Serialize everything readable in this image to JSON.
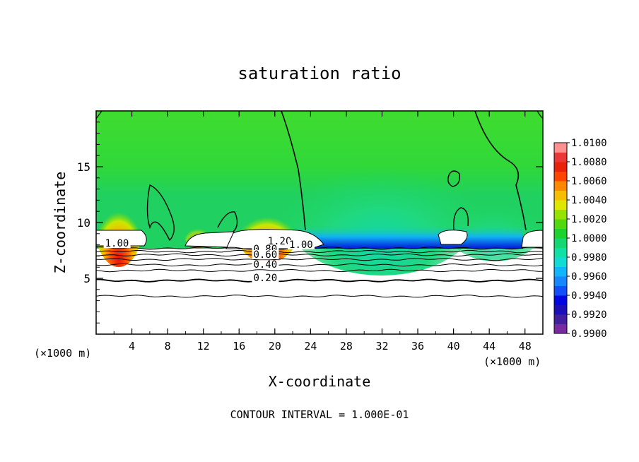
{
  "chart_data": {
    "type": "heatmap",
    "title": "saturation ratio",
    "xlabel": "X-coordinate",
    "ylabel": "Z-coordinate",
    "x_unit_left": "(×1000 m)",
    "x_unit_right": "(×1000 m)",
    "footer": "CONTOUR INTERVAL = 1.000E-01",
    "xlim": [
      0,
      50
    ],
    "ylim": [
      0,
      20
    ],
    "x_ticks": [
      4,
      8,
      12,
      16,
      20,
      24,
      28,
      32,
      36,
      40,
      44,
      48
    ],
    "y_ticks": [
      5,
      10,
      15
    ],
    "colorbar": {
      "range": [
        0.99,
        1.01
      ],
      "labels": [
        "1.0100",
        "1.0080",
        "1.0060",
        "1.0040",
        "1.0020",
        "1.0000",
        "0.9980",
        "0.9960",
        "0.9940",
        "0.9920",
        "0.9900"
      ]
    },
    "contour_labels": [
      {
        "text": "1.00",
        "x": 1.0,
        "z": 7.9
      },
      {
        "text": "1.20",
        "x": 19.2,
        "z": 8.1
      },
      {
        "text": "1.00",
        "x": 21.6,
        "z": 7.8
      },
      {
        "text": "0.80",
        "x": 17.6,
        "z": 7.4
      },
      {
        "text": "0.60",
        "x": 17.6,
        "z": 6.9
      },
      {
        "text": "0.40",
        "x": 17.6,
        "z": 6.0
      },
      {
        "text": "0.20",
        "x": 17.6,
        "z": 4.8
      }
    ],
    "contour_levels_z": [
      3.4,
      4.8,
      5.7,
      6.2,
      6.7,
      7.1,
      7.4,
      7.7
    ]
  },
  "colors": {
    "colorbar_stops": [
      "#7a2aa0",
      "#2a1aa0",
      "#0000e0",
      "#1a6aff",
      "#10b0ff",
      "#10e8c8",
      "#10d880",
      "#20d020",
      "#80e000",
      "#e8e800",
      "#ffa000",
      "#ff4000",
      "#e01010",
      "#ff9090"
    ]
  }
}
